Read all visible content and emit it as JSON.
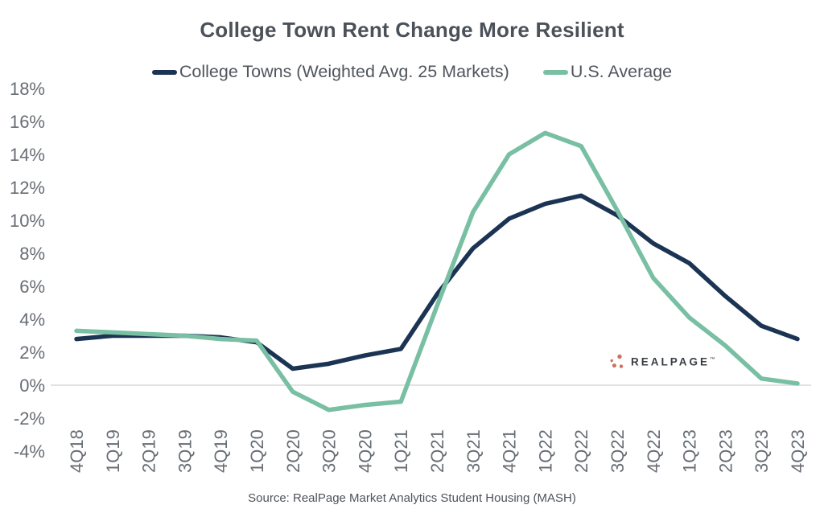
{
  "title": "College Town Rent Change More Resilient",
  "source_note": "Source: RealPage Market Analytics Student Housing (MASH)",
  "logo": {
    "text": "REALPAGE",
    "mark": "™",
    "dot_color": "#cf705b",
    "text_color": "#3a3e44"
  },
  "colors": {
    "college_towns_line": "#1c3453",
    "us_average_line": "#79bfa3",
    "gridline": "#d9dadb",
    "axis_text": "#686d74",
    "title_text": "#4b5158",
    "legend_text": "#50555c"
  },
  "chart_data": {
    "type": "line",
    "title": "College Town Rent Change More Resilient",
    "xlabel": "",
    "ylabel": "",
    "ylim": [
      -4,
      18
    ],
    "y_tick_step": 2,
    "y_tick_labels": [
      "18%",
      "16%",
      "14%",
      "12%",
      "10%",
      "8%",
      "6%",
      "4%",
      "2%",
      "0%",
      "-2%",
      "-4%"
    ],
    "grid": "zero-line-only",
    "legend_position": "top",
    "x_tick_rotation": -90,
    "categories": [
      "4Q18",
      "1Q19",
      "2Q19",
      "3Q19",
      "4Q19",
      "1Q20",
      "2Q20",
      "3Q20",
      "4Q20",
      "1Q21",
      "2Q21",
      "3Q21",
      "4Q21",
      "1Q22",
      "2Q22",
      "3Q22",
      "4Q22",
      "1Q23",
      "2Q23",
      "3Q23",
      "4Q23"
    ],
    "unit": "percent",
    "series": [
      {
        "name": "College Towns (Weighted Avg. 25 Markets)",
        "color": "#1c3453",
        "values": [
          2.8,
          3.0,
          3.0,
          3.0,
          2.9,
          2.6,
          1.0,
          1.3,
          1.8,
          2.2,
          5.5,
          8.3,
          10.1,
          11.0,
          11.5,
          10.3,
          8.6,
          7.4,
          5.4,
          3.6,
          2.8
        ]
      },
      {
        "name": "U.S. Average",
        "color": "#79bfa3",
        "values": [
          3.3,
          3.2,
          3.1,
          3.0,
          2.8,
          2.7,
          -0.4,
          -1.5,
          -1.2,
          -1.0,
          4.8,
          10.5,
          14.0,
          15.3,
          14.5,
          10.6,
          6.5,
          4.1,
          2.4,
          0.4,
          0.1
        ]
      }
    ]
  }
}
